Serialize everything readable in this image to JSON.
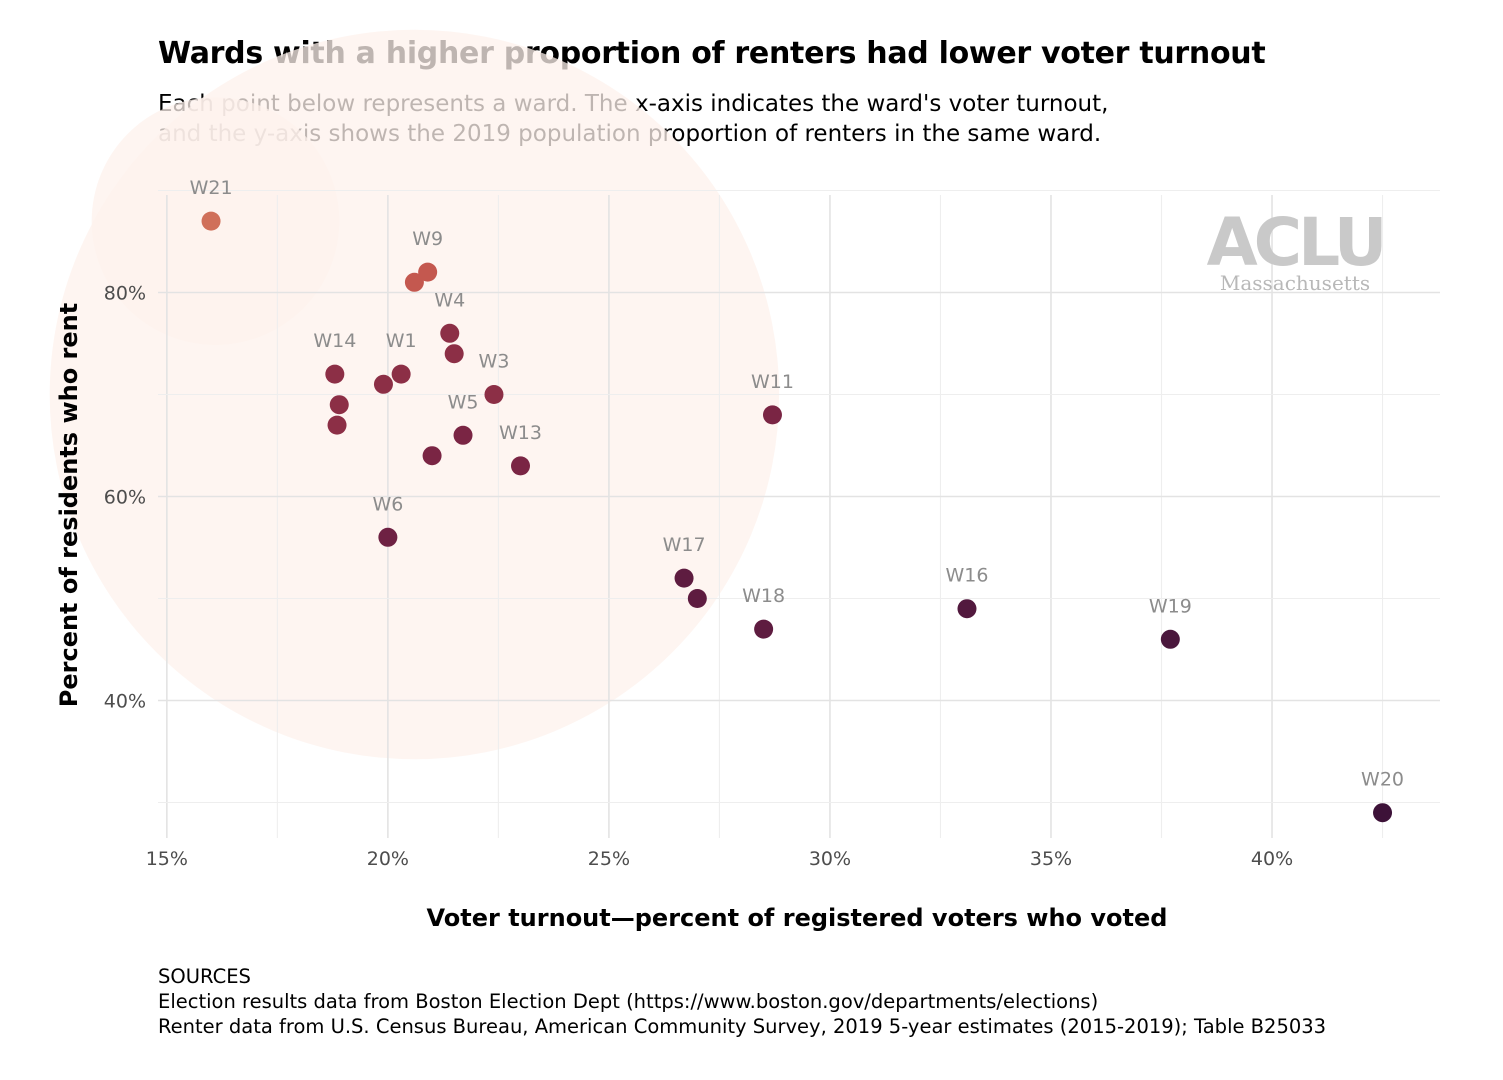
{
  "title": "Wards with a higher proportion of renters had lower voter turnout",
  "subtitle": [
    "Each point below represents a ward. The x-axis indicates the ward's voter turnout,",
    "and the y-axis shows the 2019 population proportion of renters in the same ward."
  ],
  "logo": {
    "name": "ACLU",
    "sub": "Massachusetts"
  },
  "sources": [
    "SOURCES",
    "Election results data from Boston Election Dept (https://www.boston.gov/departments/elections)",
    "Renter data from U.S. Census Bureau, American Community Survey, 2019 5-year estimates (2015-2019); Table B25033"
  ],
  "chart_data": {
    "type": "scatter",
    "xlabel": "Voter turnout—percent of registered voters who voted",
    "ylabel": "Percent of residents who rent",
    "xlim": [
      14.8,
      43.8
    ],
    "ylim": [
      27.5,
      92.5
    ],
    "x_ticks": [
      15,
      20,
      25,
      30,
      35,
      40
    ],
    "x_tick_labels": [
      "15%",
      "20%",
      "25%",
      "30%",
      "35%",
      "40%"
    ],
    "y_ticks": [
      40,
      60,
      80
    ],
    "y_tick_labels": [
      "40%",
      "60%",
      "80%"
    ],
    "grid": true,
    "highlight_circles": [
      {
        "cx": 16.1,
        "cy": 87,
        "r_percent_x": 2.8
      },
      {
        "cx": 20.6,
        "cy": 70,
        "r_percent_x": 8.25
      }
    ],
    "points": [
      {
        "label": "W21",
        "x": 16.0,
        "y": 87,
        "color": "#d0705a"
      },
      {
        "label": "W9",
        "x": 20.9,
        "y": 82,
        "color": "#c4584f"
      },
      {
        "label": "",
        "x": 20.6,
        "y": 81,
        "color": "#c4584f"
      },
      {
        "label": "W4",
        "x": 21.4,
        "y": 76,
        "color": "#8c2f46"
      },
      {
        "label": "",
        "x": 21.5,
        "y": 74,
        "color": "#8c2f46"
      },
      {
        "label": "W14",
        "x": 18.8,
        "y": 72,
        "color": "#8c2f46"
      },
      {
        "label": "W1",
        "x": 20.3,
        "y": 72,
        "color": "#8c2f46"
      },
      {
        "label": "",
        "x": 19.9,
        "y": 71,
        "color": "#8c2f46"
      },
      {
        "label": "W3",
        "x": 22.4,
        "y": 70,
        "color": "#8c2f46"
      },
      {
        "label": "",
        "x": 18.9,
        "y": 69,
        "color": "#8c2f46"
      },
      {
        "label": "",
        "x": 18.85,
        "y": 67,
        "color": "#8c2f46"
      },
      {
        "label": "W11",
        "x": 28.7,
        "y": 68,
        "color": "#7a2544"
      },
      {
        "label": "W5",
        "x": 21.7,
        "y": 66,
        "color": "#7a2544"
      },
      {
        "label": "",
        "x": 21.0,
        "y": 64,
        "color": "#7a2544"
      },
      {
        "label": "W13",
        "x": 23.0,
        "y": 63,
        "color": "#7a2544"
      },
      {
        "label": "W6",
        "x": 20.0,
        "y": 56,
        "color": "#6e2143"
      },
      {
        "label": "W17",
        "x": 26.7,
        "y": 52,
        "color": "#5e1c40"
      },
      {
        "label": "",
        "x": 27.0,
        "y": 50,
        "color": "#5e1c40"
      },
      {
        "label": "W18",
        "x": 28.5,
        "y": 47,
        "color": "#5e1c40"
      },
      {
        "label": "W16",
        "x": 33.1,
        "y": 49,
        "color": "#52193e"
      },
      {
        "label": "W19",
        "x": 37.7,
        "y": 46,
        "color": "#4a173c"
      },
      {
        "label": "W20",
        "x": 42.5,
        "y": 29,
        "color": "#3d1238"
      }
    ]
  }
}
